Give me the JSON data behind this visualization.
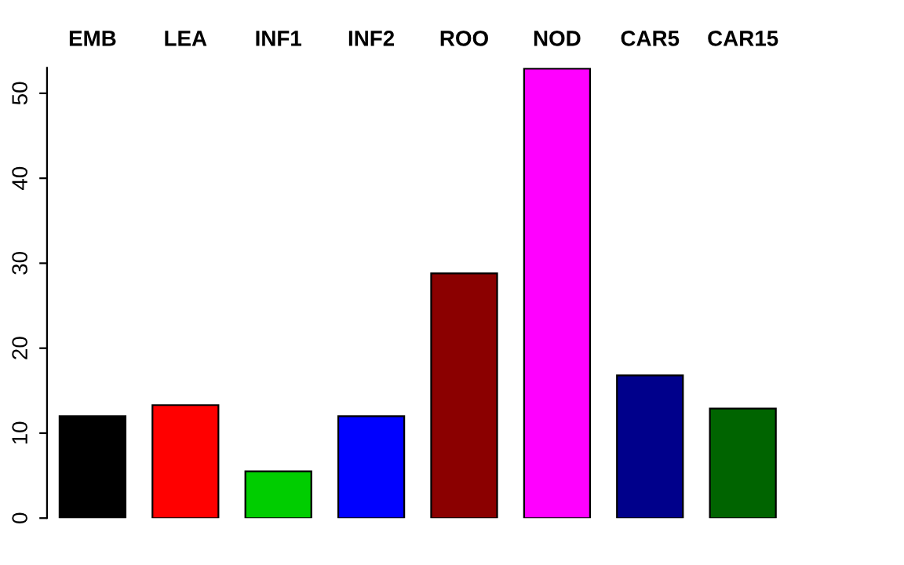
{
  "chart_data": {
    "type": "bar",
    "categories": [
      "EMB",
      "LEA",
      "INF1",
      "INF2",
      "ROO",
      "NOD",
      "CAR5",
      "CAR15"
    ],
    "values": [
      12.0,
      13.3,
      5.5,
      12.0,
      28.8,
      52.9,
      16.8,
      12.9
    ],
    "colors": [
      "#000000",
      "#ff0000",
      "#00cd00",
      "#0000ff",
      "#8b0000",
      "#ff00ff",
      "#00008b",
      "#006400"
    ],
    "ylim": [
      0,
      53
    ],
    "yticks": [
      0,
      10,
      20,
      30,
      40,
      50
    ],
    "grid": false,
    "legend": false
  }
}
